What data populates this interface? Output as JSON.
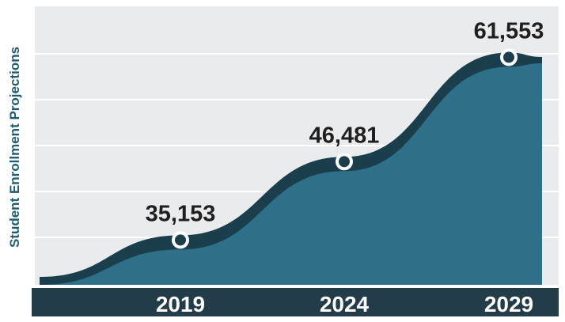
{
  "chart_data": {
    "type": "area",
    "title": "",
    "xlabel": "",
    "ylabel": "Student Enrollment Projections",
    "categories": [
      "2019",
      "2024",
      "2029"
    ],
    "x": [
      2017.3,
      2019,
      2024,
      2029,
      2030
    ],
    "highlighted_points": [
      {
        "x": "2019",
        "value": 35153,
        "label": "35,153"
      },
      {
        "x": "2024",
        "value": 46481,
        "label": "46,481"
      },
      {
        "x": "2029",
        "value": 61553,
        "label": "61,553"
      }
    ],
    "series": [
      {
        "values": [
          30100,
          35153,
          46481,
          61553,
          62400
        ]
      }
    ],
    "ylim": [
      28000,
      68000
    ],
    "grid": true,
    "legend": "none",
    "colors": {
      "panel_background": "#e9ebed",
      "gridline": "#ffffff",
      "area_fill": "#2e7088",
      "area_band": "#1b3e4d",
      "axis_bar": "#233c4a",
      "tick_text": "#ffffff",
      "data_label_text": "#1f1f1f",
      "ylabel_text": "#1b5e73",
      "marker_fill": "#1b3e4d",
      "marker_stroke": "#ffffff"
    }
  }
}
